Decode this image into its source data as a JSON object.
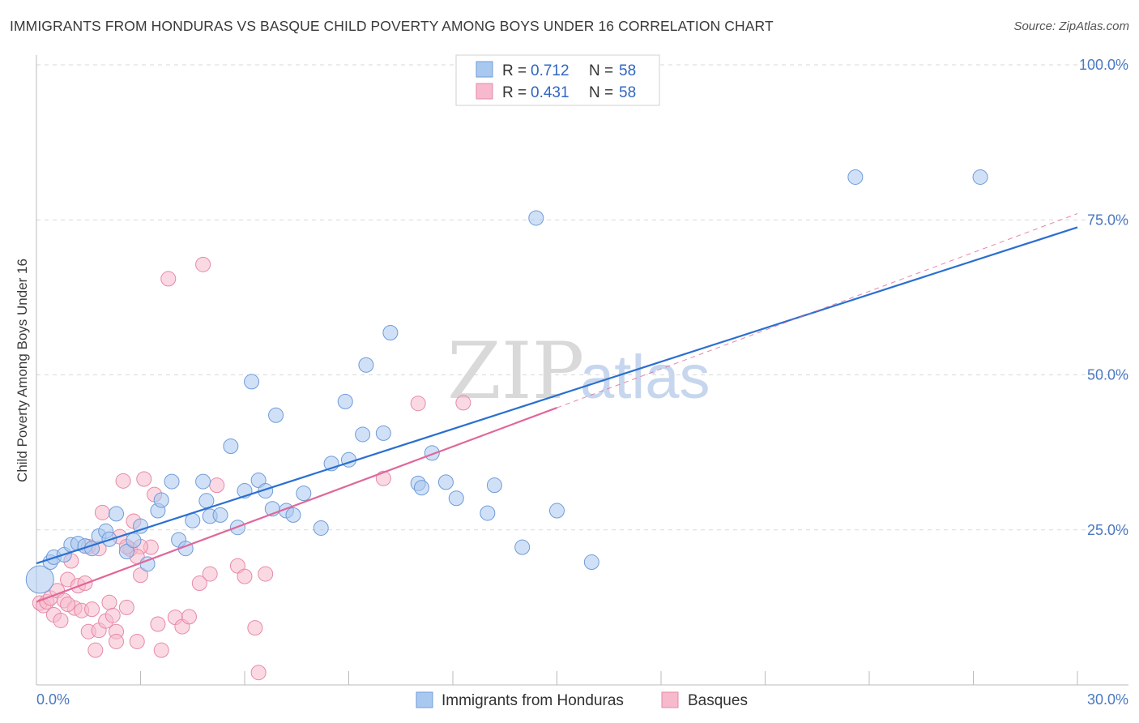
{
  "title": "IMMIGRANTS FROM HONDURAS VS BASQUE CHILD POVERTY AMONG BOYS UNDER 16 CORRELATION CHART",
  "source": "Source: ZipAtlas.com",
  "watermark": {
    "zip": "ZIP",
    "atlas": "atlas"
  },
  "legend": {
    "rows": [
      {
        "r_label": "R = ",
        "r_value": "0.712",
        "n_label": "N = ",
        "n_value": "58"
      },
      {
        "r_label": "R = ",
        "r_value": "0.431",
        "n_label": "N = ",
        "n_value": "58"
      }
    ]
  },
  "bottom_legend": [
    "Immigrants from Honduras",
    "Basques"
  ],
  "colors": {
    "blue_fill": "#a9c8f0",
    "blue_stroke": "#6f9bd8",
    "blue_line": "#2a6fd0",
    "pink_fill": "#f7b9cc",
    "pink_stroke": "#e58aa8",
    "pink_line": "#e0679a",
    "grid": "#d9d9d9",
    "tick_label": "#4a78c2"
  },
  "chart_data": {
    "type": "scatter",
    "xlabel": "",
    "ylabel": "Child Poverty Among Boys Under 16",
    "xlim": [
      0,
      30
    ],
    "ylim": [
      0,
      100
    ],
    "x_tick_labels": [
      "0.0%",
      "30.0%"
    ],
    "y_tick_labels": [
      "25.0%",
      "50.0%",
      "75.0%",
      "100.0%"
    ],
    "y_tick_values": [
      25,
      50,
      75,
      100
    ],
    "series": [
      {
        "name": "Immigrants from Honduras",
        "r": 0.712,
        "n": 58,
        "trend": {
          "x": [
            0,
            30
          ],
          "y": [
            19.6,
            73.8
          ]
        },
        "points": [
          [
            0.1,
            17.0
          ],
          [
            0.4,
            19.8
          ],
          [
            0.5,
            20.6
          ],
          [
            0.8,
            21.0
          ],
          [
            1.0,
            22.6
          ],
          [
            1.2,
            22.8
          ],
          [
            1.4,
            22.4
          ],
          [
            1.6,
            22.0
          ],
          [
            1.8,
            24.0
          ],
          [
            2.0,
            24.8
          ],
          [
            2.1,
            23.5
          ],
          [
            2.3,
            27.6
          ],
          [
            2.6,
            21.5
          ],
          [
            2.8,
            23.3
          ],
          [
            3.0,
            25.6
          ],
          [
            3.2,
            19.5
          ],
          [
            3.5,
            28.1
          ],
          [
            3.6,
            29.8
          ],
          [
            3.9,
            32.8
          ],
          [
            4.1,
            23.4
          ],
          [
            4.3,
            22.0
          ],
          [
            4.5,
            26.5
          ],
          [
            4.8,
            32.8
          ],
          [
            4.9,
            29.7
          ],
          [
            5.0,
            27.2
          ],
          [
            5.3,
            27.4
          ],
          [
            5.6,
            38.5
          ],
          [
            5.8,
            25.4
          ],
          [
            6.0,
            31.3
          ],
          [
            6.2,
            48.9
          ],
          [
            6.4,
            33.0
          ],
          [
            6.6,
            31.3
          ],
          [
            6.8,
            28.4
          ],
          [
            6.9,
            43.5
          ],
          [
            7.2,
            28.1
          ],
          [
            7.4,
            27.4
          ],
          [
            7.7,
            30.9
          ],
          [
            8.2,
            25.3
          ],
          [
            8.5,
            35.7
          ],
          [
            8.9,
            45.7
          ],
          [
            9.0,
            36.3
          ],
          [
            9.4,
            40.4
          ],
          [
            9.5,
            51.6
          ],
          [
            10.0,
            40.6
          ],
          [
            10.2,
            56.8
          ],
          [
            11.0,
            32.5
          ],
          [
            11.1,
            31.8
          ],
          [
            11.4,
            37.4
          ],
          [
            11.8,
            32.7
          ],
          [
            12.1,
            30.1
          ],
          [
            13.0,
            27.7
          ],
          [
            13.2,
            32.2
          ],
          [
            14.0,
            22.2
          ],
          [
            14.4,
            75.3
          ],
          [
            15.0,
            28.1
          ],
          [
            16.0,
            19.8
          ],
          [
            23.6,
            81.9
          ],
          [
            27.2,
            81.9
          ]
        ]
      },
      {
        "name": "Basques",
        "r": 0.431,
        "n": 58,
        "trend": {
          "x": [
            0,
            15
          ],
          "y": [
            13.4,
            44.7
          ]
        },
        "points": [
          [
            0.1,
            13.2
          ],
          [
            0.2,
            12.8
          ],
          [
            0.3,
            13.4
          ],
          [
            0.4,
            14.0
          ],
          [
            0.5,
            11.3
          ],
          [
            0.6,
            15.2
          ],
          [
            0.7,
            10.4
          ],
          [
            0.8,
            13.6
          ],
          [
            0.9,
            17.0
          ],
          [
            1.0,
            20.0
          ],
          [
            1.1,
            12.4
          ],
          [
            1.2,
            16.0
          ],
          [
            1.3,
            12.0
          ],
          [
            1.4,
            16.4
          ],
          [
            1.5,
            8.6
          ],
          [
            1.6,
            12.2
          ],
          [
            1.7,
            5.6
          ],
          [
            1.8,
            8.8
          ],
          [
            1.9,
            27.8
          ],
          [
            2.0,
            10.3
          ],
          [
            2.1,
            13.3
          ],
          [
            2.2,
            11.2
          ],
          [
            2.3,
            8.6
          ],
          [
            2.3,
            7.0
          ],
          [
            2.4,
            23.9
          ],
          [
            2.5,
            32.9
          ],
          [
            2.6,
            12.5
          ],
          [
            2.7,
            21.9
          ],
          [
            2.8,
            26.4
          ],
          [
            2.9,
            7.0
          ],
          [
            3.0,
            17.7
          ],
          [
            3.1,
            33.2
          ],
          [
            3.3,
            22.2
          ],
          [
            3.4,
            30.7
          ],
          [
            3.5,
            9.8
          ],
          [
            3.6,
            5.6
          ],
          [
            3.8,
            65.5
          ],
          [
            4.0,
            10.9
          ],
          [
            4.2,
            9.4
          ],
          [
            4.4,
            11.0
          ],
          [
            4.8,
            67.8
          ],
          [
            5.0,
            17.9
          ],
          [
            5.2,
            32.2
          ],
          [
            5.8,
            19.2
          ],
          [
            6.0,
            17.5
          ],
          [
            6.3,
            9.2
          ],
          [
            6.4,
            2.0
          ],
          [
            6.6,
            17.9
          ],
          [
            10.0,
            33.3
          ],
          [
            11.0,
            45.4
          ],
          [
            12.3,
            45.5
          ],
          [
            2.6,
            22.3
          ],
          [
            1.5,
            22.3
          ],
          [
            0.9,
            13.0
          ],
          [
            1.8,
            22.0
          ],
          [
            3.0,
            22.3
          ],
          [
            2.9,
            20.7
          ],
          [
            4.7,
            16.4
          ]
        ]
      }
    ]
  }
}
